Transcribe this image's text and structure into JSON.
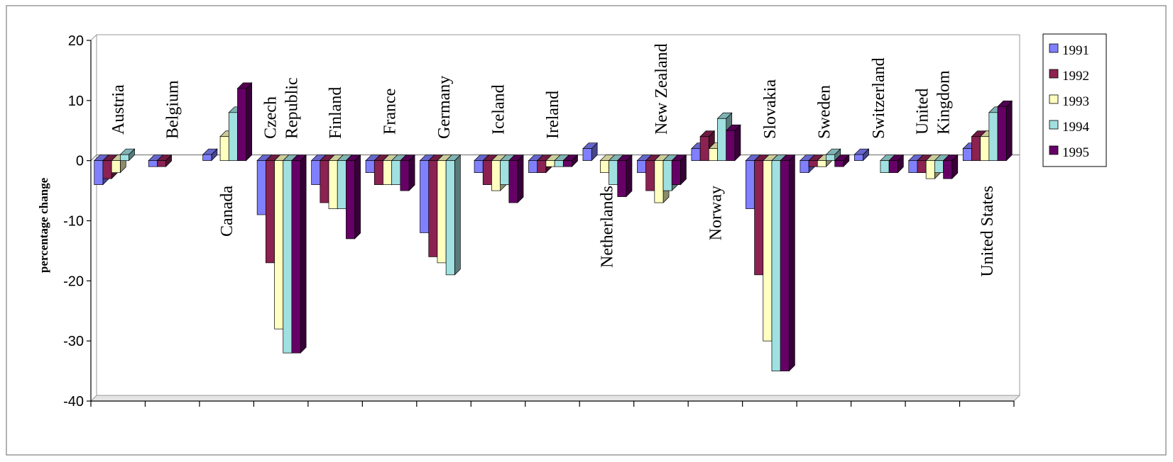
{
  "chart_data": {
    "type": "bar",
    "title": "",
    "xlabel": "",
    "ylabel": "percentage change",
    "ylim": [
      -40,
      20
    ],
    "yticks": [
      20,
      10,
      0,
      -10,
      -20,
      -30,
      -40
    ],
    "legend_position": "right",
    "categories": [
      [
        "Austria"
      ],
      [
        "Belgium"
      ],
      [
        "Canada"
      ],
      [
        "Czech",
        "Republic"
      ],
      [
        "Finland"
      ],
      [
        "France"
      ],
      [
        "Germany"
      ],
      [
        "Iceland"
      ],
      [
        "Ireland"
      ],
      [
        "Netherlands"
      ],
      [
        "New Zealand"
      ],
      [
        "Norway"
      ],
      [
        "Slovakia"
      ],
      [
        "Sweden"
      ],
      [
        "Switzerland"
      ],
      [
        "United",
        "Kingdom"
      ],
      [
        "United States"
      ]
    ],
    "series": [
      {
        "name": "1991",
        "color": "#8080FF",
        "values": [
          -4,
          -1,
          1,
          -9,
          -4,
          -2,
          -12,
          -2,
          -2,
          2,
          -2,
          2,
          -8,
          -2,
          1,
          -2,
          2
        ]
      },
      {
        "name": "1992",
        "color": "#8B2252",
        "values": [
          -3,
          -1,
          0,
          -17,
          -7,
          -4,
          -16,
          -4,
          -2,
          0,
          -5,
          4,
          -19,
          -1,
          0,
          -2,
          4
        ]
      },
      {
        "name": "1993",
        "color": "#FFFFC0",
        "values": [
          -2,
          0,
          4,
          -28,
          -8,
          -4,
          -17,
          -5,
          -1,
          -2,
          -7,
          2,
          -30,
          -1,
          0,
          -3,
          4
        ]
      },
      {
        "name": "1994",
        "color": "#A0E0E0",
        "values": [
          1,
          0,
          8,
          -32,
          -8,
          -4,
          -19,
          -4,
          -1,
          -4,
          -5,
          7,
          -35,
          1,
          -2,
          -2,
          8
        ]
      },
      {
        "name": "1995",
        "color": "#660066",
        "values": [
          0,
          0,
          12,
          -32,
          -13,
          -5,
          0,
          -7,
          -1,
          -6,
          -4,
          5,
          -35,
          -1,
          -2,
          -3,
          9
        ]
      }
    ]
  }
}
